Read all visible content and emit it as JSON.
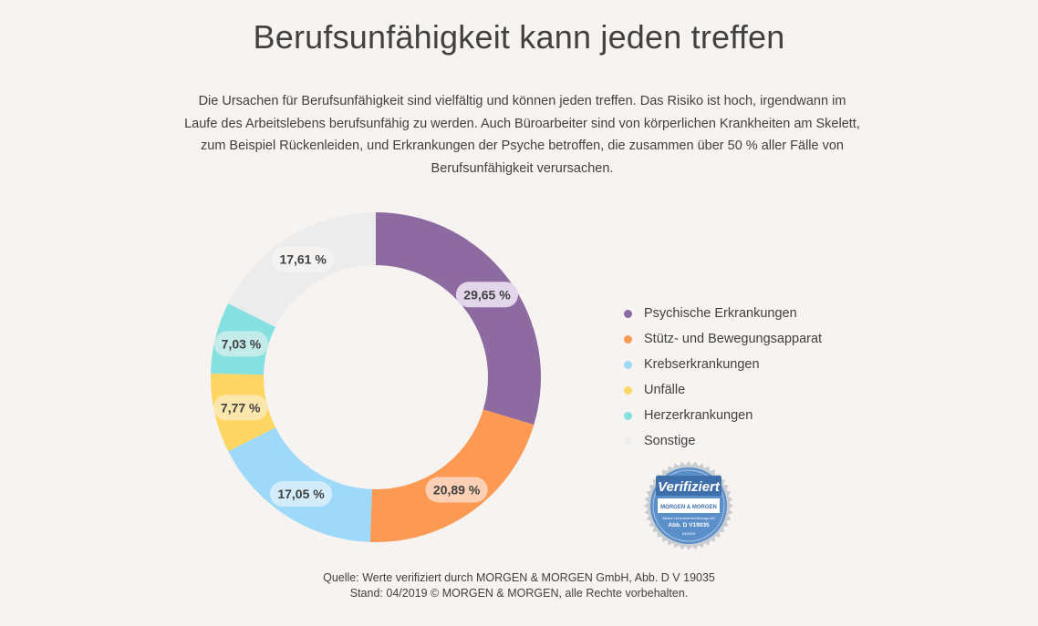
{
  "page": {
    "title": "Berufsunfähigkeit kann jeden treffen",
    "intro": "Die Ursachen für Berufsunfähigkeit sind vielfältig und können jeden treffen. Das Risiko ist hoch, irgendwann im Laufe des Arbeitslebens berufsunfähig zu werden. Auch Büroarbeiter sind von körperlichen Krankheiten am Skelett, zum Beispiel Rückenleiden, und Erkrankungen der Psyche betroffen, die zusammen über 50 % aller Fälle von Berufsunfähigkeit verursachen.",
    "source_line1": "Quelle: Werte verifiziert durch MORGEN & MORGEN GmbH, Abb. D V 19035",
    "source_line2": "Stand: 04/2019 © MORGEN & MORGEN, alle Rechte vorbehalten."
  },
  "badge": {
    "label": "Verifiziert",
    "brand": "MORGEN & MORGEN",
    "company": "Allianz Lebensversicherungs-AG",
    "code": "Abb. D V19035",
    "date": "04/2019"
  },
  "chart_data": {
    "type": "pie",
    "style": "donut",
    "start": "top, clockwise",
    "legend_position": "right",
    "slices": [
      {
        "name": "Psychische Erkrankungen",
        "value": 29.65,
        "label": "29,65 %",
        "color": "#8d6a9f",
        "label_bg": "#e3d6ea"
      },
      {
        "name": "Stütz- und Bewegungsapparat",
        "value": 20.89,
        "label": "20,89 %",
        "color": "#fc9952",
        "label_bg": "#fcd0b4"
      },
      {
        "name": "Krebserkrankungen",
        "value": 17.05,
        "label": "17,05 %",
        "color": "#9ed9fa",
        "label_bg": "#d3ecfa"
      },
      {
        "name": "Unfälle",
        "value": 7.77,
        "label": "7,77 %",
        "color": "#fed663",
        "label_bg": "#fbe7ab"
      },
      {
        "name": "Herzerkrankungen",
        "value": 7.03,
        "label": "7,03 %",
        "color": "#84e1e0",
        "label_bg": "#c2ebea"
      },
      {
        "name": "Sonstige",
        "value": 17.61,
        "label": "17,61 %",
        "color": "#ececec",
        "label_bg": "#f3f2f1"
      }
    ]
  }
}
